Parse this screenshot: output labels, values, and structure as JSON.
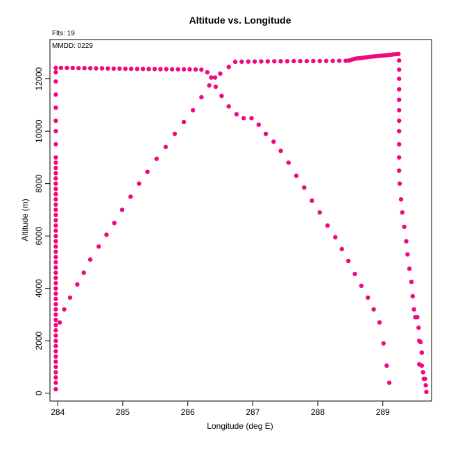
{
  "chart_data": {
    "type": "scatter",
    "title": "Altitude vs. Longitude",
    "xlabel": "Longitude (deg E)",
    "ylabel": "Altitude (m)",
    "top_note": "Flts: 19",
    "inset_note": "MMDD: 0229",
    "xlim": [
      283.88,
      289.75
    ],
    "ylim": [
      -300,
      13500
    ],
    "xticks": [
      284,
      285,
      286,
      287,
      288,
      289
    ],
    "yticks": [
      0,
      2000,
      4000,
      6000,
      8000,
      10000,
      12000
    ],
    "grid": false,
    "point_color": "#f0087f",
    "series": [
      {
        "values": [
          [
            283.97,
            150
          ],
          [
            283.97,
            400
          ],
          [
            283.97,
            600
          ],
          [
            283.97,
            800
          ],
          [
            283.97,
            1000
          ],
          [
            283.97,
            1200
          ],
          [
            283.97,
            1400
          ],
          [
            283.97,
            1600
          ],
          [
            283.97,
            1800
          ],
          [
            283.97,
            2000
          ],
          [
            283.97,
            2200
          ],
          [
            283.97,
            2400
          ],
          [
            283.97,
            2600
          ],
          [
            283.97,
            2800
          ],
          [
            283.97,
            3000
          ],
          [
            283.97,
            3200
          ],
          [
            283.97,
            3400
          ],
          [
            283.97,
            3600
          ],
          [
            283.97,
            3800
          ],
          [
            283.97,
            4000
          ],
          [
            283.97,
            4200
          ],
          [
            283.97,
            4400
          ],
          [
            283.97,
            4600
          ],
          [
            283.97,
            4800
          ],
          [
            283.97,
            5000
          ],
          [
            283.97,
            5200
          ],
          [
            283.97,
            5400
          ],
          [
            283.97,
            5600
          ],
          [
            283.97,
            5800
          ],
          [
            283.97,
            6000
          ],
          [
            283.97,
            6200
          ],
          [
            283.97,
            6400
          ],
          [
            283.97,
            6600
          ],
          [
            283.97,
            6800
          ],
          [
            283.97,
            7000
          ],
          [
            283.97,
            7200
          ],
          [
            283.97,
            7400
          ],
          [
            283.97,
            7600
          ],
          [
            283.97,
            7800
          ],
          [
            283.97,
            8000
          ],
          [
            283.97,
            8200
          ],
          [
            283.97,
            8400
          ],
          [
            283.97,
            8600
          ],
          [
            283.97,
            8800
          ],
          [
            283.97,
            9000
          ],
          [
            283.97,
            9500
          ],
          [
            283.97,
            10000
          ],
          [
            283.97,
            10400
          ],
          [
            283.97,
            10900
          ],
          [
            283.97,
            11400
          ],
          [
            283.97,
            11900
          ],
          [
            283.97,
            12250
          ],
          [
            283.97,
            12420
          ],
          [
            284.05,
            12420
          ],
          [
            284.14,
            12420
          ],
          [
            284.23,
            12415
          ],
          [
            284.32,
            12410
          ],
          [
            284.41,
            12410
          ],
          [
            284.5,
            12405
          ],
          [
            284.59,
            12400
          ],
          [
            284.68,
            12400
          ],
          [
            284.77,
            12395
          ],
          [
            284.86,
            12390
          ],
          [
            284.95,
            12390
          ],
          [
            285.04,
            12385
          ],
          [
            285.13,
            12385
          ],
          [
            285.22,
            12380
          ],
          [
            285.31,
            12380
          ],
          [
            285.4,
            12375
          ],
          [
            285.49,
            12375
          ],
          [
            285.58,
            12370
          ],
          [
            285.67,
            12370
          ],
          [
            285.76,
            12365
          ],
          [
            285.85,
            12365
          ],
          [
            285.94,
            12360
          ],
          [
            286.03,
            12360
          ],
          [
            286.12,
            12355
          ],
          [
            286.21,
            12350
          ],
          [
            286.3,
            12250
          ],
          [
            286.36,
            12050
          ],
          [
            286.43,
            11700
          ],
          [
            286.52,
            11350
          ],
          [
            286.63,
            10950
          ],
          [
            286.75,
            10650
          ],
          [
            286.86,
            10500
          ],
          [
            286.98,
            10500
          ],
          [
            287.09,
            10250
          ],
          [
            287.2,
            9900
          ],
          [
            287.32,
            9600
          ],
          [
            287.43,
            9250
          ],
          [
            287.55,
            8800
          ],
          [
            287.67,
            8300
          ],
          [
            287.79,
            7850
          ],
          [
            287.91,
            7350
          ],
          [
            288.03,
            6900
          ],
          [
            288.15,
            6400
          ],
          [
            288.27,
            5950
          ],
          [
            288.37,
            5500
          ],
          [
            288.47,
            5050
          ],
          [
            288.57,
            4550
          ],
          [
            288.67,
            4100
          ],
          [
            288.77,
            3650
          ],
          [
            288.86,
            3200
          ],
          [
            288.95,
            2700
          ],
          [
            289.01,
            1900
          ],
          [
            289.06,
            1050
          ],
          [
            289.1,
            400
          ]
        ]
      },
      {
        "values": [
          [
            284.03,
            2700
          ],
          [
            284.1,
            3200
          ],
          [
            284.19,
            3650
          ],
          [
            284.3,
            4150
          ],
          [
            284.4,
            4600
          ],
          [
            284.5,
            5100
          ],
          [
            284.63,
            5600
          ],
          [
            284.75,
            6050
          ],
          [
            284.87,
            6500
          ],
          [
            284.99,
            7000
          ],
          [
            285.12,
            7500
          ],
          [
            285.25,
            8000
          ],
          [
            285.38,
            8450
          ],
          [
            285.52,
            8950
          ],
          [
            285.66,
            9400
          ],
          [
            285.8,
            9900
          ],
          [
            285.94,
            10350
          ],
          [
            286.08,
            10800
          ],
          [
            286.21,
            11300
          ],
          [
            286.33,
            11750
          ],
          [
            286.42,
            12050
          ],
          [
            286.5,
            12200
          ],
          [
            286.63,
            12450
          ],
          [
            286.73,
            12650
          ],
          [
            286.83,
            12655
          ],
          [
            286.93,
            12660
          ],
          [
            287.03,
            12660
          ],
          [
            287.13,
            12665
          ],
          [
            287.23,
            12665
          ],
          [
            287.33,
            12670
          ],
          [
            287.43,
            12670
          ],
          [
            287.53,
            12670
          ],
          [
            287.63,
            12675
          ],
          [
            287.73,
            12675
          ],
          [
            287.83,
            12675
          ],
          [
            287.93,
            12680
          ],
          [
            288.03,
            12680
          ],
          [
            288.13,
            12685
          ],
          [
            288.23,
            12685
          ],
          [
            288.33,
            12690
          ],
          [
            288.43,
            12690
          ],
          [
            288.48,
            12700
          ],
          [
            288.52,
            12730
          ],
          [
            288.56,
            12760
          ],
          [
            288.6,
            12780
          ],
          [
            288.64,
            12790
          ],
          [
            288.68,
            12800
          ],
          [
            288.72,
            12815
          ],
          [
            288.76,
            12830
          ],
          [
            288.8,
            12840
          ],
          [
            288.84,
            12850
          ],
          [
            288.88,
            12860
          ],
          [
            288.92,
            12870
          ],
          [
            288.96,
            12880
          ],
          [
            289.0,
            12890
          ],
          [
            289.04,
            12900
          ],
          [
            289.08,
            12910
          ],
          [
            289.12,
            12920
          ],
          [
            289.16,
            12930
          ],
          [
            289.2,
            12940
          ],
          [
            289.24,
            12950
          ],
          [
            289.25,
            12700
          ],
          [
            289.25,
            12350
          ],
          [
            289.25,
            12000
          ],
          [
            289.25,
            11600
          ],
          [
            289.25,
            11200
          ],
          [
            289.25,
            10800
          ],
          [
            289.25,
            10400
          ],
          [
            289.25,
            10000
          ],
          [
            289.25,
            9500
          ],
          [
            289.25,
            9000
          ],
          [
            289.25,
            8500
          ],
          [
            289.26,
            8000
          ],
          [
            289.28,
            7400
          ],
          [
            289.3,
            6900
          ],
          [
            289.33,
            6350
          ],
          [
            289.36,
            5800
          ],
          [
            289.38,
            5300
          ],
          [
            289.41,
            4750
          ],
          [
            289.44,
            4250
          ],
          [
            289.46,
            3700
          ],
          [
            289.48,
            3200
          ],
          [
            289.5,
            2900
          ],
          [
            289.53,
            2900
          ],
          [
            289.55,
            2500
          ],
          [
            289.56,
            2000
          ],
          [
            289.58,
            1950
          ],
          [
            289.6,
            1550
          ],
          [
            289.56,
            1100
          ],
          [
            289.6,
            1050
          ],
          [
            289.62,
            800
          ],
          [
            289.63,
            550
          ],
          [
            289.65,
            550
          ],
          [
            289.66,
            300
          ],
          [
            289.67,
            50
          ]
        ]
      }
    ]
  }
}
